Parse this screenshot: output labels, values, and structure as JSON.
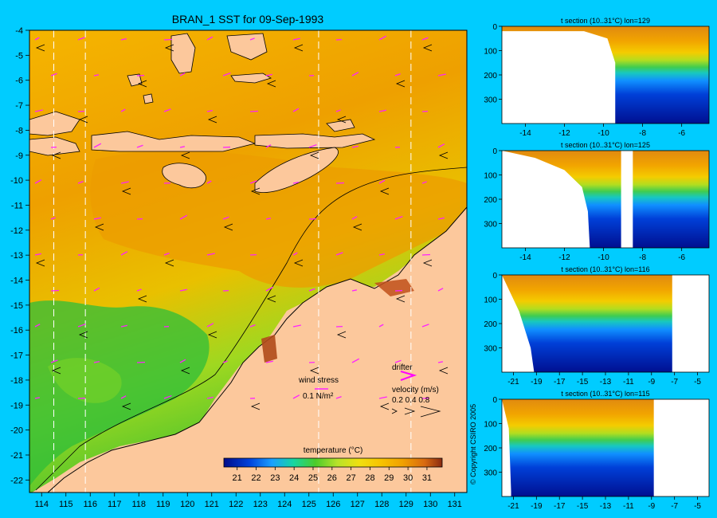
{
  "chart_data": [
    {
      "type": "heatmap",
      "title": "BRAN_1 SST for 09-Sep-1993",
      "xlim": [
        113.5,
        131.5
      ],
      "ylim": [
        -22.5,
        -4
      ],
      "x_ticks": [
        114,
        115,
        116,
        117,
        118,
        119,
        120,
        121,
        122,
        123,
        124,
        125,
        126,
        127,
        128,
        129,
        130,
        131
      ],
      "y_ticks": [
        -4,
        -5,
        -6,
        -7,
        -8,
        -9,
        -10,
        -11,
        -12,
        -13,
        -14,
        -15,
        -16,
        -17,
        -18,
        -19,
        -20,
        -21,
        -22
      ],
      "section_lines_lon": [
        114.5,
        115.8,
        125.4,
        129.2
      ],
      "colorbar": {
        "label": "temperature (°C)",
        "ticks": [
          21,
          22,
          23,
          24,
          25,
          26,
          27,
          28,
          29,
          30,
          31
        ],
        "range": [
          20.3,
          31.8
        ]
      },
      "legend": {
        "wind_label": "wind stress",
        "wind_scale": "0.1 N/m²",
        "drifter_label": "drifter",
        "velocity_label": "velocity (m/s)",
        "velocity_values": "0.2 0.4 0.8"
      },
      "colors": {
        "land": "#fcc89c",
        "background": "#00ccff",
        "vectors": "#ff22ff"
      }
    },
    {
      "type": "heatmap",
      "title": "t section (10..31°C) lon=129",
      "x_ticks": [
        -14,
        -12,
        -10,
        -8,
        -6
      ],
      "xlim": [
        -15.2,
        -4.6
      ],
      "y_ticks": [
        0,
        100,
        200,
        300
      ],
      "ylim": [
        0,
        400
      ],
      "seafloor": [
        [
          -15.2,
          20
        ],
        [
          -13,
          20
        ],
        [
          -11,
          20
        ],
        [
          -9.8,
          50
        ],
        [
          -9.4,
          150
        ],
        [
          -9.4,
          400
        ]
      ]
    },
    {
      "type": "heatmap",
      "title": "t section (10..31°C) lon=125",
      "x_ticks": [
        -14,
        -12,
        -10,
        -8,
        -6
      ],
      "xlim": [
        -15.2,
        -4.6
      ],
      "y_ticks": [
        0,
        100,
        200,
        300
      ],
      "ylim": [
        0,
        400
      ],
      "seafloor": [
        [
          -15.2,
          0
        ],
        [
          -13.5,
          30
        ],
        [
          -12,
          80
        ],
        [
          -11.1,
          150
        ],
        [
          -10.8,
          250
        ],
        [
          -10.7,
          400
        ]
      ],
      "gap": [
        -9.1,
        -8.5
      ]
    },
    {
      "type": "heatmap",
      "title": "t section (10..31°C) lon=116",
      "x_ticks": [
        -21,
        -19,
        -17,
        -15,
        -13,
        -11,
        -9,
        -7,
        -5
      ],
      "xlim": [
        -22,
        -4
      ],
      "y_ticks": [
        0,
        100,
        200,
        300
      ],
      "ylim": [
        0,
        400
      ],
      "seafloor": [
        [
          -22,
          0
        ],
        [
          -21.5,
          50
        ],
        [
          -20.5,
          150
        ],
        [
          -19.5,
          300
        ],
        [
          -19.2,
          400
        ]
      ],
      "gap": [
        -7.2,
        -4
      ]
    },
    {
      "type": "heatmap",
      "title": "t section (10..31°C) lon=115",
      "x_ticks": [
        -21,
        -19,
        -17,
        -15,
        -13,
        -11,
        -9,
        -7,
        -5
      ],
      "xlim": [
        -22,
        -4
      ],
      "y_ticks": [
        0,
        100,
        200,
        300
      ],
      "ylim": [
        0,
        400
      ],
      "seafloor": [
        [
          -22,
          0
        ],
        [
          -21.4,
          120
        ],
        [
          -21.2,
          380
        ]
      ],
      "gap": [
        -8.8,
        -4
      ]
    }
  ],
  "copyright": "© Copyright CSIRO 2005"
}
